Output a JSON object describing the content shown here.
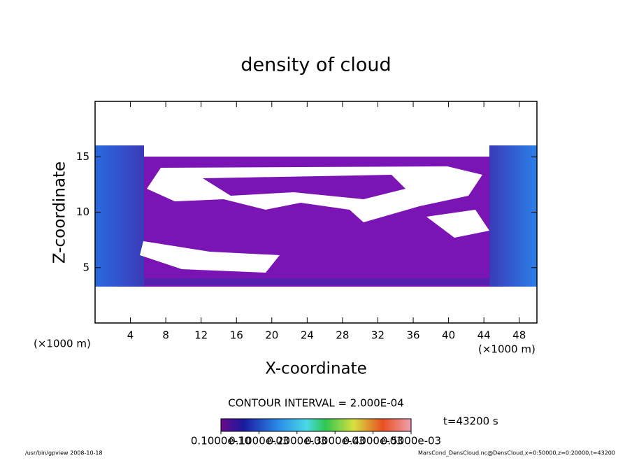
{
  "chart_data": {
    "type": "contour",
    "title": "density of cloud",
    "xlabel": "X-coordinate",
    "ylabel": "Z-coordinate",
    "unit_label": "(×1000 m)",
    "xlim": [
      0,
      50
    ],
    "xticks": [
      4,
      8,
      12,
      16,
      20,
      24,
      28,
      32,
      36,
      40,
      44,
      48
    ],
    "ylim": [
      0,
      20
    ],
    "yticks": [
      5,
      10,
      15
    ],
    "contour_interval": "CONTOUR INTERVAL = 2.000E-04",
    "time_label": "t=43200 s",
    "colorbar_lim": [
      0,
      0.0005
    ],
    "colorbar_ticks": [
      {
        "value": 1e-11,
        "label": "0.1000e-10"
      },
      {
        "value": 0.0001,
        "label": "0.1000e-03"
      },
      {
        "value": 0.0002,
        "label": "0.2000e-03"
      },
      {
        "value": 0.0003,
        "label": "0.3000e-03"
      },
      {
        "value": 0.0004,
        "label": "0.4000e-03"
      },
      {
        "value": 0.0005,
        "label": "0.5000e-03"
      }
    ],
    "footer_left": "/usr/bin/gpview  2008-10-18",
    "footer_right": "MarsCond_DensCloud.nc@DensCloud,x=0:50000,z=0:20000,t=43200"
  }
}
